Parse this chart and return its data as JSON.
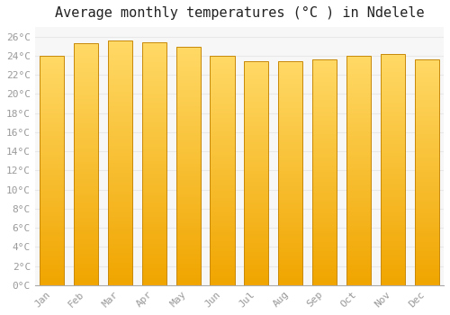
{
  "title": "Average monthly temperatures (°C ) in Ndelele",
  "months": [
    "Jan",
    "Feb",
    "Mar",
    "Apr",
    "May",
    "Jun",
    "Jul",
    "Aug",
    "Sep",
    "Oct",
    "Nov",
    "Dec"
  ],
  "values": [
    24.0,
    25.3,
    25.6,
    25.4,
    24.9,
    24.0,
    23.4,
    23.4,
    23.6,
    24.0,
    24.2,
    23.6
  ],
  "bar_color_light": "#FFD966",
  "bar_color_dark": "#F0A500",
  "bar_edge_color": "#C8890A",
  "background_color": "#FFFFFF",
  "plot_bg_color": "#F7F7F7",
  "grid_color": "#E8E8E8",
  "ylim": [
    0,
    27
  ],
  "ytick_step": 2,
  "title_fontsize": 11,
  "tick_fontsize": 8,
  "font_family": "monospace",
  "tick_color": "#999999",
  "title_color": "#222222"
}
